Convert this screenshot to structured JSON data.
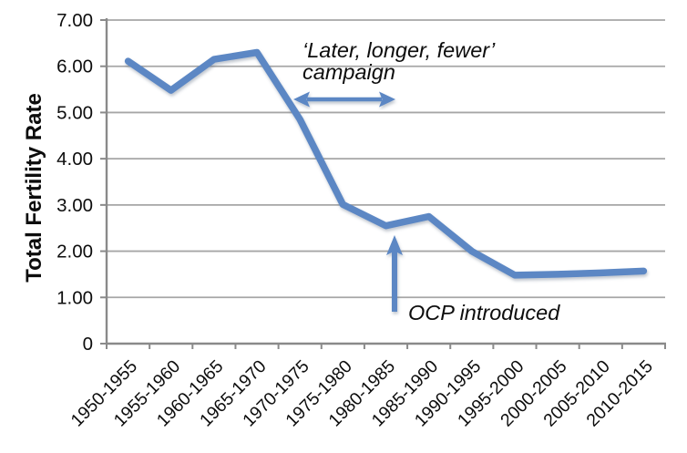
{
  "chart_data": {
    "type": "line",
    "title": "",
    "xlabel": "",
    "ylabel": "Total Fertility Rate",
    "ylim": [
      0,
      7
    ],
    "grid": true,
    "legend": "none",
    "categories": [
      "1950-1955",
      "1955-1960",
      "1960-1965",
      "1965-1970",
      "1970-1975",
      "1975-1980",
      "1980-1985",
      "1985-1990",
      "1990-1995",
      "1995-2000",
      "2000-2005",
      "2005-2010",
      "2010-2015"
    ],
    "series": [
      {
        "name": "Total Fertility Rate",
        "values": [
          6.11,
          5.48,
          6.15,
          6.3,
          4.85,
          3.01,
          2.55,
          2.75,
          2.0,
          1.48,
          1.5,
          1.53,
          1.57
        ]
      }
    ],
    "ytick_labels": [
      "0",
      "1.00",
      "2.00",
      "3.00",
      "4.00",
      "5.00",
      "6.00",
      "7.00"
    ],
    "annotations": [
      {
        "id": "campaign",
        "text_line1": "‘Later, longer, fewer’",
        "text_line2": "campaign",
        "arrow": "horizontal-double",
        "points_at": "decline 1970-1975 to 1975-1980"
      },
      {
        "id": "ocp",
        "text": "OCP introduced",
        "arrow": "vertical-up",
        "points_at": "1980-1985 data point"
      }
    ]
  },
  "colors": {
    "line": "#5B87C4",
    "arrow": "#5B87C4",
    "gridline": "#A6A6A6",
    "axis": "#8A8A8A",
    "text": "#0d0d0d"
  }
}
